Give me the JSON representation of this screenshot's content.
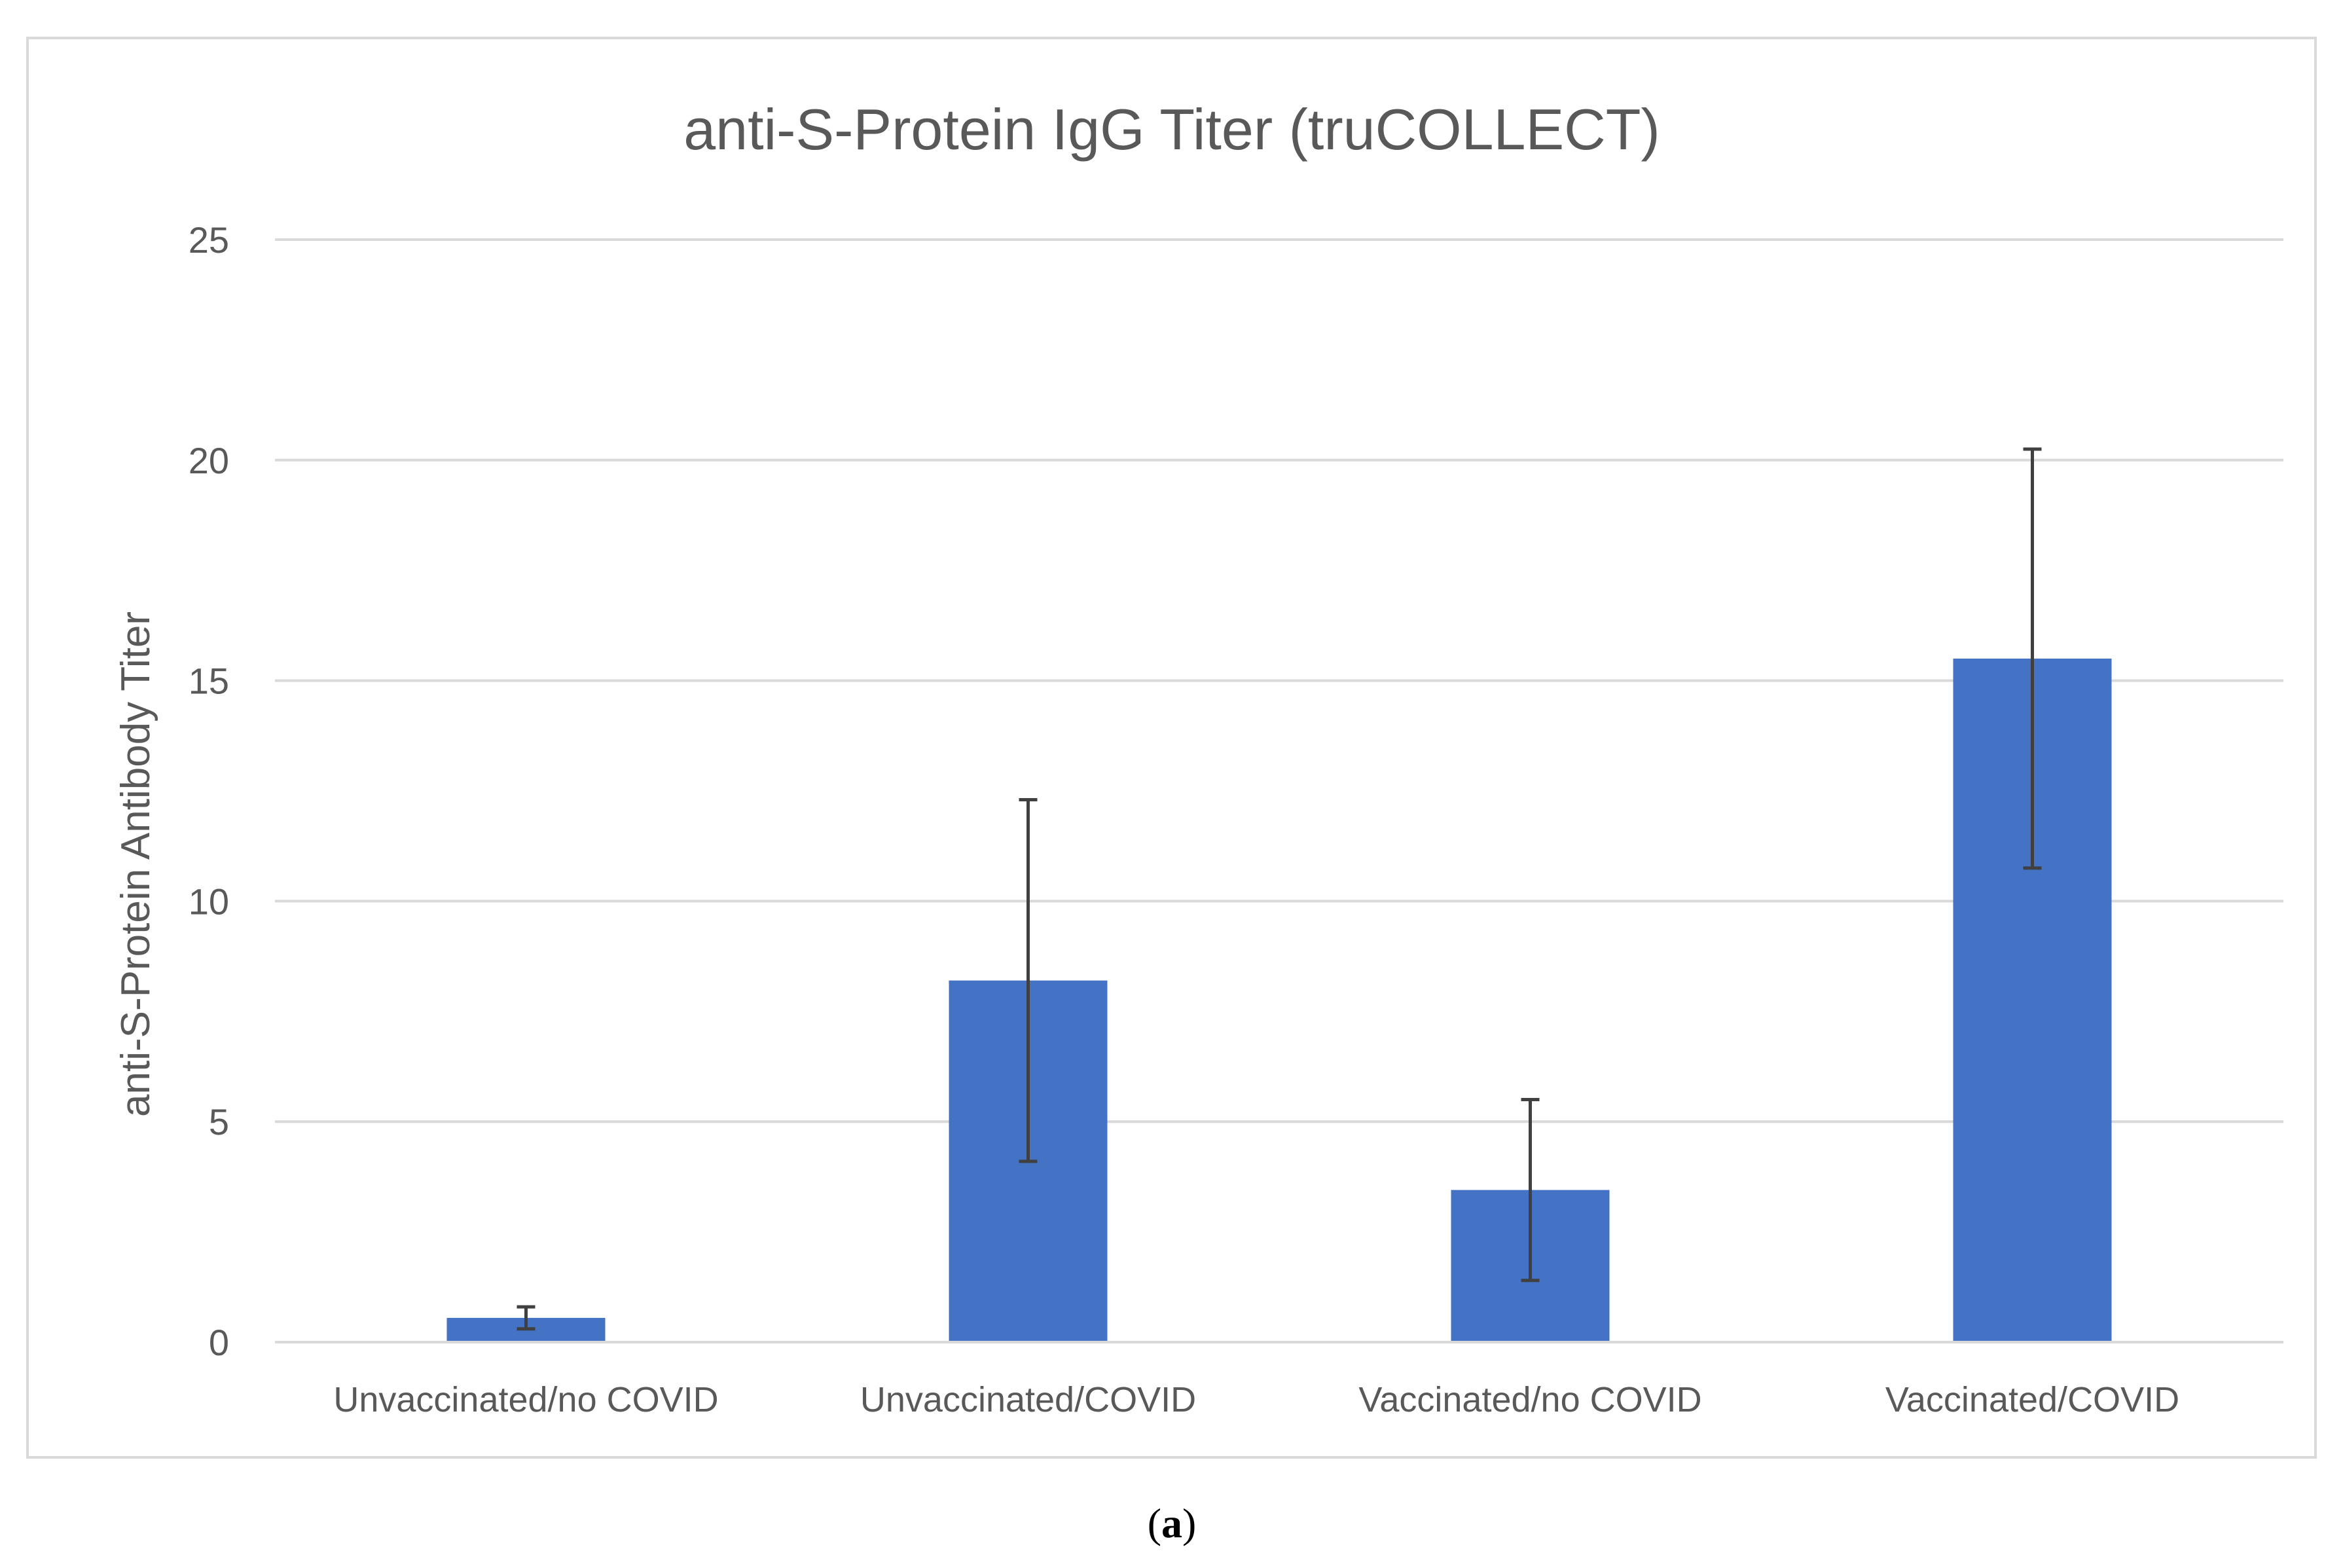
{
  "chart_data": {
    "type": "bar",
    "title": "anti-S-Protein IgG Titer (truCOLLECT)",
    "xlabel": "",
    "ylabel": "anti-S-Protein Antibody Titer",
    "ylim": [
      0,
      25
    ],
    "yticks": [
      "0",
      "5",
      "10",
      "15",
      "20",
      "25"
    ],
    "grid": true,
    "categories": [
      "Unvaccinated/no COVID",
      "Unvaccinated/COVID",
      "Vaccinated/no COVID",
      "Vaccinated/COVID"
    ],
    "values": [
      0.55,
      8.2,
      3.45,
      15.5
    ],
    "error_bars": [
      0.25,
      4.1,
      2.05,
      4.75
    ],
    "colors": {
      "bar": "#4472C4",
      "error_bar": "#404040",
      "grid": "#D9D9D9",
      "frame": "#D9D9D9"
    }
  },
  "caption": {
    "open": "(",
    "letter": "a",
    "close": ")"
  }
}
